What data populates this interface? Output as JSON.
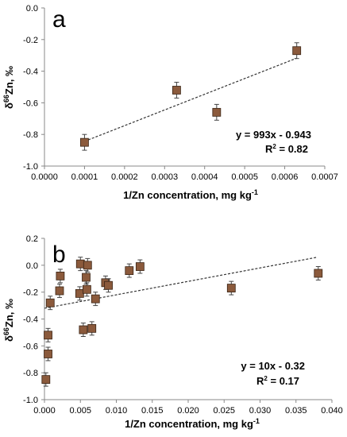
{
  "chart_data": [
    {
      "type": "scatter",
      "panel_label": "a",
      "xlabel": "1/Zn concentration, mg kg",
      "xlabel_sup": "-1",
      "ylabel_delta": "δ",
      "ylabel_sup": "66",
      "ylabel_rest": "Zn, ‰",
      "xlim": [
        0,
        0.0007
      ],
      "ylim": [
        -1.0,
        0.0
      ],
      "xticks": [
        "0.0000",
        "0.0001",
        "0.0002",
        "0.0003",
        "0.0004",
        "0.0005",
        "0.0006",
        "0.0007"
      ],
      "yticks": [
        "0.0",
        "-0.2",
        "-0.4",
        "-0.6",
        "-0.8",
        "-1.0"
      ],
      "points": [
        {
          "x": 0.0001,
          "y": -0.85,
          "err": 0.05
        },
        {
          "x": 0.00033,
          "y": -0.52,
          "err": 0.05
        },
        {
          "x": 0.00043,
          "y": -0.66,
          "err": 0.05
        },
        {
          "x": 0.00063,
          "y": -0.27,
          "err": 0.05
        }
      ],
      "trendline": {
        "slope": 993,
        "intercept": -0.943,
        "x_range": [
          0.0001,
          0.00063
        ]
      },
      "equation": "y = 993x - 0.943",
      "r2_label": "R",
      "r2_sup": "2",
      "r2_value": " = 0.82",
      "marker_color": "#8B5A3C",
      "grid": false
    },
    {
      "type": "scatter",
      "panel_label": "b",
      "xlabel": "1/Zn concentration, mg kg",
      "xlabel_sup": "-1",
      "ylabel_delta": "δ",
      "ylabel_sup": "66",
      "ylabel_rest": "Zn, ‰",
      "xlim": [
        0,
        0.04
      ],
      "ylim": [
        -1.0,
        0.2
      ],
      "xticks": [
        "0.000",
        "0.005",
        "0.010",
        "0.015",
        "0.020",
        "0.025",
        "0.030",
        "0.035",
        "0.040"
      ],
      "yticks": [
        "0.2",
        "0.0",
        "-0.2",
        "-0.4",
        "-0.6",
        "-0.8",
        "-1.0"
      ],
      "points": [
        {
          "x": 0.0002,
          "y": -0.85,
          "err": 0.05
        },
        {
          "x": 0.0005,
          "y": -0.66,
          "err": 0.05
        },
        {
          "x": 0.0005,
          "y": -0.52,
          "err": 0.05
        },
        {
          "x": 0.0008,
          "y": -0.28,
          "err": 0.05
        },
        {
          "x": 0.0021,
          "y": -0.19,
          "err": 0.05
        },
        {
          "x": 0.0022,
          "y": -0.08,
          "err": 0.05
        },
        {
          "x": 0.0049,
          "y": -0.21,
          "err": 0.05
        },
        {
          "x": 0.005,
          "y": 0.01,
          "err": 0.05
        },
        {
          "x": 0.0054,
          "y": -0.48,
          "err": 0.05
        },
        {
          "x": 0.0058,
          "y": -0.09,
          "err": 0.05
        },
        {
          "x": 0.0059,
          "y": -0.18,
          "err": 0.05
        },
        {
          "x": 0.006,
          "y": 0.0,
          "err": 0.05
        },
        {
          "x": 0.0066,
          "y": -0.47,
          "err": 0.05
        },
        {
          "x": 0.0071,
          "y": -0.25,
          "err": 0.05
        },
        {
          "x": 0.0085,
          "y": -0.13,
          "err": 0.05
        },
        {
          "x": 0.0089,
          "y": -0.15,
          "err": 0.05
        },
        {
          "x": 0.0118,
          "y": -0.04,
          "err": 0.05
        },
        {
          "x": 0.0133,
          "y": -0.01,
          "err": 0.05
        },
        {
          "x": 0.026,
          "y": -0.17,
          "err": 0.05
        },
        {
          "x": 0.0381,
          "y": -0.06,
          "err": 0.05
        }
      ],
      "trendline": {
        "slope": 10,
        "intercept": -0.32,
        "x_range": [
          0,
          0.038
        ]
      },
      "equation": "y = 10x - 0.32",
      "r2_label": "R",
      "r2_sup": "2",
      "r2_value": " = 0.17",
      "marker_color": "#8B5A3C",
      "grid": false
    }
  ]
}
